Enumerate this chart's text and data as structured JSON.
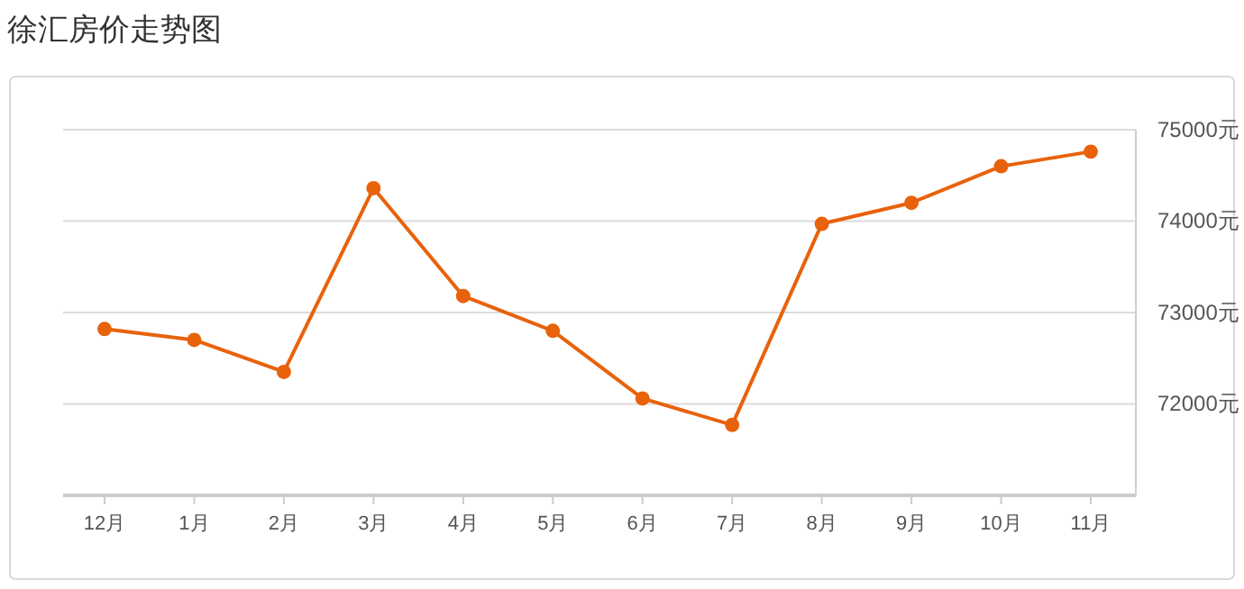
{
  "chart_data": {
    "type": "line",
    "title": "徐汇房价走势图",
    "categories": [
      "12月",
      "1月",
      "2月",
      "3月",
      "4月",
      "5月",
      "6月",
      "7月",
      "8月",
      "9月",
      "10月",
      "11月"
    ],
    "series": [
      {
        "color": "#e8620c",
        "values": [
          72820,
          72700,
          72350,
          74360,
          73180,
          72800,
          72060,
          71770,
          73970,
          74200,
          74600,
          74760
        ]
      }
    ],
    "ylim": [
      71000,
      75000
    ],
    "yticks": [
      {
        "value": 72000,
        "label": "72000元"
      },
      {
        "value": 73000,
        "label": "73000元"
      },
      {
        "value": 74000,
        "label": "74000元"
      },
      {
        "value": 75000,
        "label": "75000元"
      }
    ],
    "grid": "y",
    "marker": "circle",
    "line_style": "solid"
  }
}
